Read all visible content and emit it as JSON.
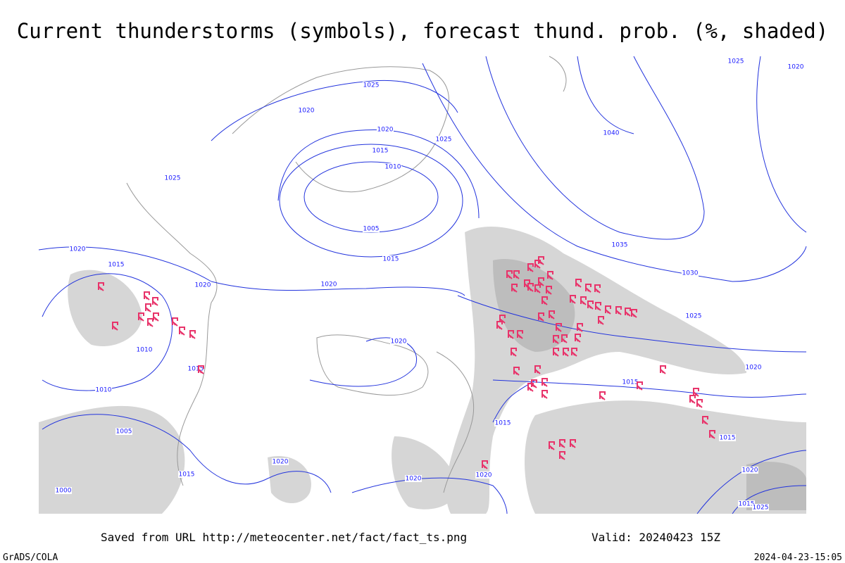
{
  "title": "Current thunderstorms (symbols), forecast thund. prob. (%, shaded)",
  "footer": {
    "url_note": "Saved from URL http://meteocenter.net/fact/fact_ts.png",
    "valid": "Valid: 20240423 15Z",
    "software": "GrADS/COLA",
    "timestamp": "2024-04-23-15:05"
  },
  "isobar_labels": [
    "1025",
    "1020",
    "1020",
    "1015",
    "1010",
    "1005",
    "1015",
    "1025",
    "1040",
    "1035",
    "1030",
    "1025",
    "1020",
    "1015",
    "1015",
    "1020",
    "1020",
    "1025",
    "1020",
    "1015",
    "1020",
    "1010",
    "1015",
    "1010",
    "1005",
    "1000",
    "1015",
    "1020",
    "1020",
    "1020",
    "1015",
    "1020",
    "1015",
    "1025",
    "1020",
    "1025"
  ]
}
